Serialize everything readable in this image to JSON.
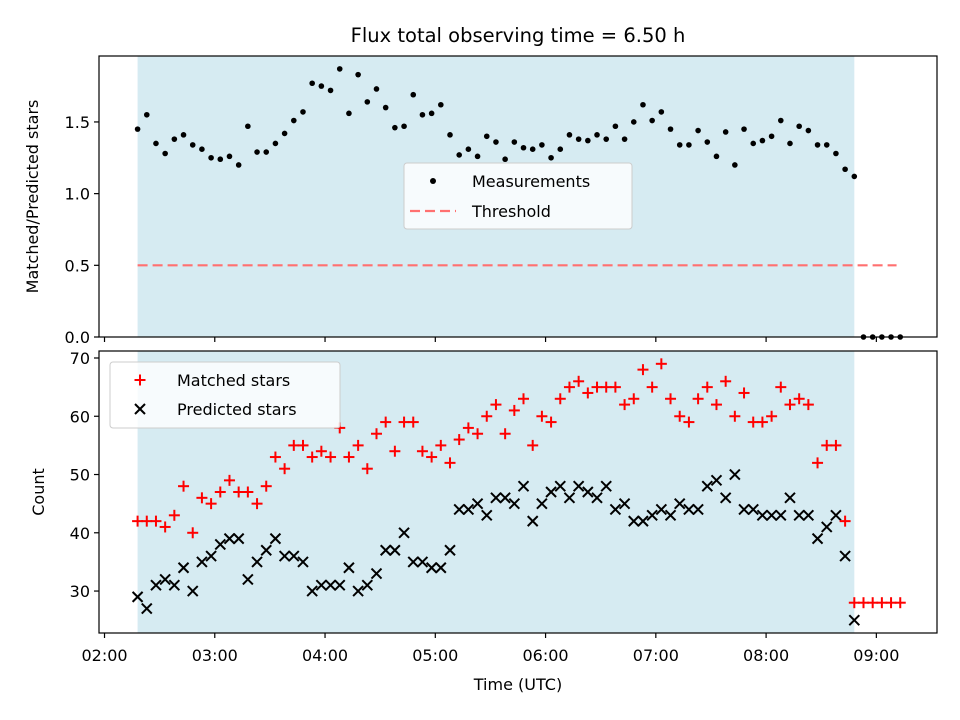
{
  "chart_data": [
    {
      "type": "scatter",
      "title": "Flux total observing time = 6.50 h",
      "xlabel": "",
      "ylabel": "Matched/Predicted stars",
      "xlim": [
        "01:57",
        "09:33"
      ],
      "ylim": [
        0,
        1.96
      ],
      "yticks": [
        0.0,
        0.5,
        1.0,
        1.5
      ],
      "ytick_labels": [
        "0.0",
        "0.5",
        "1.0",
        "1.5"
      ],
      "xticks": [
        "02:00",
        "03:00",
        "04:00",
        "05:00",
        "06:00",
        "07:00",
        "08:00",
        "09:00"
      ],
      "observing_window": [
        "02:18",
        "08:48"
      ],
      "observing_window_color": "#add8e6",
      "legend_position": "center",
      "threshold": {
        "name": "Threshold",
        "value": 0.5,
        "x_range": [
          "02:18",
          "09:11"
        ],
        "color": "#ff7070",
        "style": "dashed"
      },
      "series": [
        {
          "name": "Measurements",
          "marker": "dot",
          "color": "#000000",
          "x": [
            "02:18",
            "02:23",
            "02:28",
            "02:33",
            "02:38",
            "02:43",
            "02:48",
            "02:53",
            "02:58",
            "03:03",
            "03:08",
            "03:13",
            "03:18",
            "03:23",
            "03:28",
            "03:33",
            "03:38",
            "03:43",
            "03:48",
            "03:53",
            "03:58",
            "04:03",
            "04:08",
            "04:13",
            "04:18",
            "04:23",
            "04:28",
            "04:33",
            "04:38",
            "04:43",
            "04:48",
            "04:53",
            "04:58",
            "05:03",
            "05:08",
            "05:13",
            "05:18",
            "05:23",
            "05:28",
            "05:33",
            "05:38",
            "05:43",
            "05:48",
            "05:53",
            "05:58",
            "06:03",
            "06:08",
            "06:13",
            "06:18",
            "06:23",
            "06:28",
            "06:33",
            "06:38",
            "06:43",
            "06:48",
            "06:53",
            "06:58",
            "07:03",
            "07:08",
            "07:13",
            "07:18",
            "07:23",
            "07:28",
            "07:33",
            "07:38",
            "07:43",
            "07:48",
            "07:53",
            "07:58",
            "08:03",
            "08:08",
            "08:13",
            "08:18",
            "08:23",
            "08:28",
            "08:33",
            "08:38",
            "08:43",
            "08:48",
            "08:53",
            "08:58",
            "09:03",
            "09:08",
            "09:13"
          ],
          "y": [
            1.45,
            1.55,
            1.35,
            1.28,
            1.38,
            1.41,
            1.34,
            1.31,
            1.25,
            1.24,
            1.26,
            1.2,
            1.47,
            1.29,
            1.29,
            1.35,
            1.42,
            1.51,
            1.57,
            1.77,
            1.75,
            1.72,
            1.87,
            1.56,
            1.83,
            1.64,
            1.73,
            1.6,
            1.46,
            1.47,
            1.69,
            1.55,
            1.56,
            1.62,
            1.41,
            1.27,
            1.31,
            1.26,
            1.4,
            1.36,
            1.24,
            1.36,
            1.32,
            1.31,
            1.34,
            1.25,
            1.31,
            1.41,
            1.38,
            1.37,
            1.41,
            1.38,
            1.47,
            1.38,
            1.5,
            1.62,
            1.51,
            1.57,
            1.45,
            1.34,
            1.34,
            1.44,
            1.36,
            1.26,
            1.43,
            1.2,
            1.45,
            1.35,
            1.37,
            1.4,
            1.51,
            1.35,
            1.47,
            1.44,
            1.34,
            1.34,
            1.28,
            1.17,
            1.12,
            0.0,
            0.0,
            0.0,
            0.0,
            0.0
          ]
        }
      ]
    },
    {
      "type": "scatter",
      "title": "",
      "xlabel": "Time (UTC)",
      "ylabel": "Count",
      "xlim": [
        "01:57",
        "09:33"
      ],
      "ylim": [
        22.8,
        71.2
      ],
      "yticks": [
        30,
        40,
        50,
        60,
        70
      ],
      "ytick_labels": [
        "30",
        "40",
        "50",
        "60",
        "70"
      ],
      "xticks": [
        "02:00",
        "03:00",
        "04:00",
        "05:00",
        "06:00",
        "07:00",
        "08:00",
        "09:00"
      ],
      "xtick_labels": [
        "02:00",
        "03:00",
        "04:00",
        "05:00",
        "06:00",
        "07:00",
        "08:00",
        "09:00"
      ],
      "observing_window": [
        "02:18",
        "08:48"
      ],
      "observing_window_color": "#add8e6",
      "legend_position": "top-left",
      "series": [
        {
          "name": "Matched stars",
          "marker": "plus",
          "color": "#ff0000",
          "x": [
            "02:18",
            "02:23",
            "02:28",
            "02:33",
            "02:38",
            "02:43",
            "02:48",
            "02:53",
            "02:58",
            "03:03",
            "03:08",
            "03:13",
            "03:18",
            "03:23",
            "03:28",
            "03:33",
            "03:38",
            "03:43",
            "03:48",
            "03:53",
            "03:58",
            "04:03",
            "04:08",
            "04:13",
            "04:18",
            "04:23",
            "04:28",
            "04:33",
            "04:38",
            "04:43",
            "04:48",
            "04:53",
            "04:58",
            "05:03",
            "05:08",
            "05:13",
            "05:18",
            "05:23",
            "05:28",
            "05:33",
            "05:38",
            "05:43",
            "05:48",
            "05:53",
            "05:58",
            "06:03",
            "06:08",
            "06:13",
            "06:18",
            "06:23",
            "06:28",
            "06:33",
            "06:38",
            "06:43",
            "06:48",
            "06:53",
            "06:58",
            "07:03",
            "07:08",
            "07:13",
            "07:18",
            "07:23",
            "07:28",
            "07:33",
            "07:38",
            "07:43",
            "07:48",
            "07:53",
            "07:58",
            "08:03",
            "08:08",
            "08:13",
            "08:18",
            "08:23",
            "08:28",
            "08:33",
            "08:38",
            "08:43",
            "08:48",
            "08:53",
            "08:58",
            "09:03",
            "09:08",
            "09:13"
          ],
          "y": [
            42,
            42,
            42,
            41,
            43,
            48,
            40,
            46,
            45,
            47,
            49,
            47,
            47,
            45,
            48,
            53,
            51,
            55,
            55,
            53,
            54,
            53,
            58,
            53,
            55,
            51,
            57,
            59,
            54,
            59,
            59,
            54,
            53,
            55,
            52,
            56,
            58,
            57,
            60,
            62,
            57,
            61,
            63,
            55,
            60,
            59,
            63,
            65,
            66,
            64,
            65,
            65,
            65,
            62,
            63,
            68,
            65,
            69,
            63,
            60,
            59,
            63,
            65,
            62,
            66,
            60,
            64,
            59,
            59,
            60,
            65,
            62,
            63,
            62,
            52,
            55,
            55,
            42,
            28,
            28,
            28,
            28,
            28,
            28
          ]
        },
        {
          "name": "Predicted stars",
          "marker": "x",
          "color": "#000000",
          "x": [
            "02:18",
            "02:23",
            "02:28",
            "02:33",
            "02:38",
            "02:43",
            "02:48",
            "02:53",
            "02:58",
            "03:03",
            "03:08",
            "03:13",
            "03:18",
            "03:23",
            "03:28",
            "03:33",
            "03:38",
            "03:43",
            "03:48",
            "03:53",
            "03:58",
            "04:03",
            "04:08",
            "04:13",
            "04:18",
            "04:23",
            "04:28",
            "04:33",
            "04:38",
            "04:43",
            "04:48",
            "04:53",
            "04:58",
            "05:03",
            "05:08",
            "05:13",
            "05:18",
            "05:23",
            "05:28",
            "05:33",
            "05:38",
            "05:43",
            "05:48",
            "05:53",
            "05:58",
            "06:03",
            "06:08",
            "06:13",
            "06:18",
            "06:23",
            "06:28",
            "06:33",
            "06:38",
            "06:43",
            "06:48",
            "06:53",
            "06:58",
            "07:03",
            "07:08",
            "07:13",
            "07:18",
            "07:23",
            "07:28",
            "07:33",
            "07:38",
            "07:43",
            "07:48",
            "07:53",
            "07:58",
            "08:03",
            "08:08",
            "08:13",
            "08:18",
            "08:23",
            "08:28",
            "08:33",
            "08:38",
            "08:43",
            "08:48"
          ],
          "y": [
            29,
            27,
            31,
            32,
            31,
            34,
            30,
            35,
            36,
            38,
            39,
            39,
            32,
            35,
            37,
            39,
            36,
            36,
            35,
            30,
            31,
            31,
            31,
            34,
            30,
            31,
            33,
            37,
            37,
            40,
            35,
            35,
            34,
            34,
            37,
            44,
            44,
            45,
            43,
            46,
            46,
            45,
            48,
            42,
            45,
            47,
            48,
            46,
            48,
            47,
            46,
            48,
            44,
            45,
            42,
            42,
            43,
            44,
            43,
            45,
            44,
            44,
            48,
            49,
            46,
            50,
            44,
            44,
            43,
            43,
            43,
            46,
            43,
            43,
            39,
            41,
            43,
            36,
            25
          ]
        }
      ]
    }
  ]
}
